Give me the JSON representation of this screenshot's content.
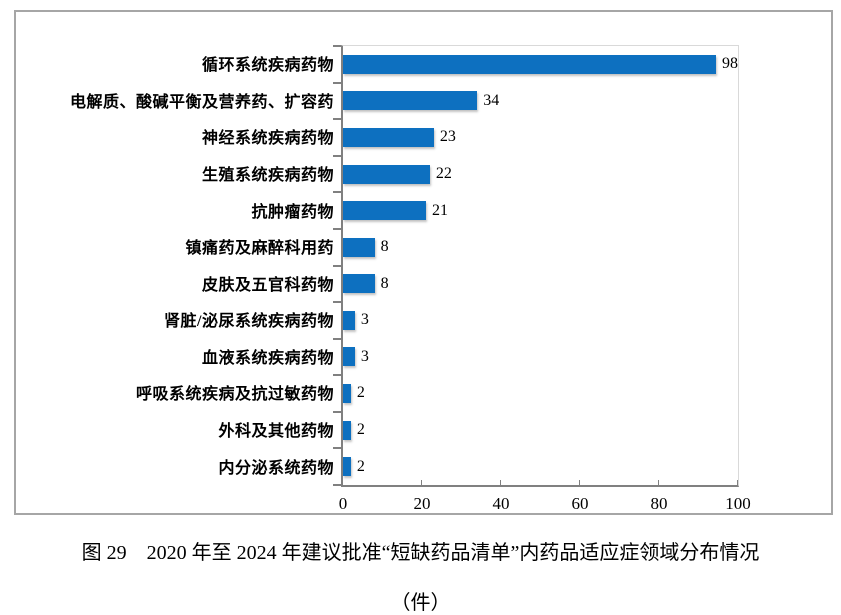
{
  "chart_data": {
    "type": "bar",
    "orientation": "horizontal",
    "title": "",
    "xlabel": "",
    "ylabel": "",
    "categories": [
      "循环系统疾病药物",
      "电解质、酸碱平衡及营养药、扩容药",
      "神经系统疾病药物",
      "生殖系统疾病药物",
      "抗肿瘤药物",
      "镇痛药及麻醉科用药",
      "皮肤及五官科药物",
      "肾脏/泌尿系统疾病药物",
      "血液系统疾病药物",
      "呼吸系统疾病及抗过敏药物",
      "外科及其他药物",
      "内分泌系统药物"
    ],
    "values": [
      98,
      34,
      23,
      22,
      21,
      8,
      8,
      3,
      3,
      2,
      2,
      2
    ],
    "x_ticks": [
      0,
      20,
      40,
      60,
      80,
      100
    ],
    "xlim": [
      0,
      100
    ],
    "grid": false,
    "legend": false,
    "bar_color": "#0d70c0"
  },
  "caption": {
    "line1": "图 29　2020 年至 2024 年建议批准“短缺药品清单”内药品适应症领域分布情况",
    "line2": "（件）"
  },
  "colors": {
    "frame_border": "#a6a6a6",
    "axis": "#808080",
    "plot_faint_border": "#d9d9d9",
    "bar": "#0d70c0"
  }
}
